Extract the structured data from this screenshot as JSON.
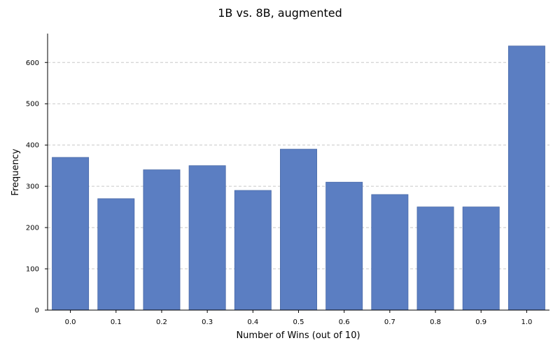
{
  "chart_data": {
    "type": "bar",
    "title": "1B vs. 8B, augmented",
    "xlabel": "Number of Wins (out of 10)",
    "ylabel": "Frequency",
    "categories": [
      "0.0",
      "0.1",
      "0.2",
      "0.3",
      "0.4",
      "0.5",
      "0.6",
      "0.7",
      "0.8",
      "0.9",
      "1.0"
    ],
    "values": [
      370,
      270,
      340,
      350,
      290,
      390,
      310,
      280,
      250,
      250,
      640
    ],
    "ylim": [
      0,
      670
    ],
    "yticks": [
      0,
      100,
      200,
      300,
      400,
      500,
      600
    ],
    "grid": "horizontal dashed",
    "bar_color": "#5b7ec2"
  }
}
